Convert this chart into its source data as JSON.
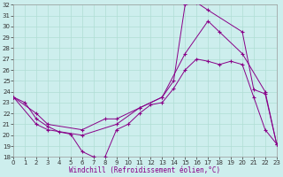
{
  "xlabel": "Windchill (Refroidissement éolien,°C)",
  "xlim": [
    0,
    23
  ],
  "ylim": [
    18,
    32
  ],
  "yticks": [
    18,
    19,
    20,
    21,
    22,
    23,
    24,
    25,
    26,
    27,
    28,
    29,
    30,
    31,
    32
  ],
  "xticks": [
    0,
    1,
    2,
    3,
    4,
    5,
    6,
    7,
    8,
    9,
    10,
    11,
    12,
    13,
    14,
    15,
    16,
    17,
    18,
    19,
    20,
    21,
    22,
    23
  ],
  "bg": "#cdeeed",
  "grid_color": "#b0ddd4",
  "lc": "#880088",
  "line1_x": [
    0,
    1,
    2,
    3,
    4,
    5,
    6,
    7,
    8,
    9,
    10,
    11,
    12,
    13,
    14,
    15,
    16,
    17,
    18,
    19,
    20,
    21,
    22,
    23
  ],
  "line1_y": [
    23.5,
    23.0,
    21.5,
    20.8,
    20.3,
    20.1,
    18.5,
    18.0,
    18.0,
    20.5,
    21.0,
    22.0,
    22.8,
    23.0,
    24.3,
    26.0,
    27.0,
    26.8,
    26.5,
    26.8,
    26.5,
    23.5,
    20.5,
    19.2
  ],
  "line2_x": [
    0,
    2,
    3,
    6,
    8,
    9,
    11,
    13,
    14,
    15,
    16,
    17,
    20,
    21,
    22,
    23
  ],
  "line2_y": [
    23.5,
    22.0,
    21.0,
    20.5,
    21.5,
    21.5,
    22.5,
    23.5,
    25.0,
    32.0,
    32.2,
    31.5,
    29.5,
    24.2,
    23.8,
    19.2
  ],
  "line3_x": [
    0,
    2,
    3,
    6,
    9,
    11,
    13,
    15,
    17,
    18,
    20,
    22,
    23
  ],
  "line3_y": [
    23.5,
    21.0,
    20.5,
    20.0,
    21.0,
    22.5,
    23.5,
    27.5,
    30.5,
    29.5,
    27.5,
    24.0,
    19.2
  ]
}
